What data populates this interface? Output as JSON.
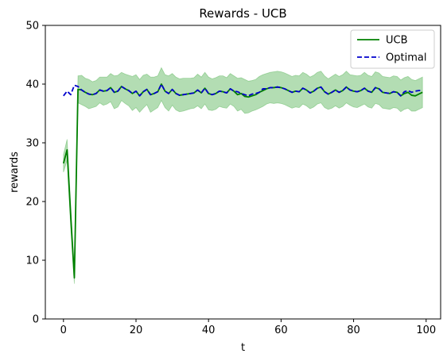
{
  "chart_data": {
    "type": "line",
    "title": "Rewards - UCB",
    "xlabel": "t",
    "ylabel": "rewards",
    "xlim": [
      -5,
      104
    ],
    "ylim": [
      0,
      50
    ],
    "xticks": [
      0,
      20,
      40,
      60,
      80,
      100
    ],
    "yticks": [
      0,
      10,
      20,
      30,
      40,
      50
    ],
    "grid": false,
    "legend_position": "top-right",
    "series": [
      {
        "name": "UCB",
        "style": "solid",
        "color": "#008000",
        "band_color": "#2ca02c",
        "x": [
          0,
          1,
          2,
          3,
          4,
          5,
          6,
          7,
          8,
          9,
          10,
          11,
          12,
          13,
          14,
          15,
          16,
          17,
          18,
          19,
          20,
          21,
          22,
          23,
          24,
          25,
          26,
          27,
          28,
          29,
          30,
          31,
          32,
          33,
          34,
          35,
          36,
          37,
          38,
          39,
          40,
          41,
          42,
          43,
          44,
          45,
          46,
          47,
          48,
          49,
          50,
          51,
          52,
          53,
          54,
          55,
          56,
          57,
          58,
          59,
          60,
          61,
          62,
          63,
          64,
          65,
          66,
          67,
          68,
          69,
          70,
          71,
          72,
          73,
          74,
          75,
          76,
          77,
          78,
          79,
          80,
          81,
          82,
          83,
          84,
          85,
          86,
          87,
          88,
          89,
          90,
          91,
          92,
          93,
          94,
          95,
          96,
          97,
          98,
          99
        ],
        "values": [
          26.5,
          28.8,
          17.5,
          7.0,
          39.1,
          39.0,
          38.6,
          38.3,
          38.2,
          38.4,
          39.0,
          38.8,
          38.9,
          39.4,
          38.6,
          38.8,
          39.6,
          39.2,
          38.9,
          38.4,
          38.8,
          38.0,
          38.7,
          39.1,
          38.2,
          38.4,
          38.7,
          40.0,
          38.8,
          38.4,
          39.1,
          38.4,
          38.1,
          38.2,
          38.3,
          38.4,
          38.5,
          39.0,
          38.5,
          39.3,
          38.4,
          38.2,
          38.4,
          38.8,
          38.7,
          38.5,
          39.2,
          38.8,
          38.2,
          38.4,
          37.9,
          37.8,
          38.0,
          38.2,
          38.6,
          38.9,
          39.2,
          39.4,
          39.4,
          39.5,
          39.4,
          39.2,
          38.9,
          38.6,
          38.8,
          38.7,
          39.3,
          39.0,
          38.5,
          38.8,
          39.3,
          39.5,
          38.7,
          38.3,
          38.6,
          39.0,
          38.6,
          38.9,
          39.5,
          39.0,
          38.8,
          38.7,
          38.9,
          39.3,
          38.8,
          38.6,
          39.4,
          39.2,
          38.6,
          38.5,
          38.4,
          38.7,
          38.6,
          38.0,
          38.4,
          38.6,
          38.1,
          38.0,
          38.3,
          38.6
        ],
        "lower": [
          25.0,
          27.0,
          15.5,
          6.0,
          36.8,
          36.5,
          36.2,
          35.8,
          36.0,
          36.2,
          36.8,
          36.4,
          36.6,
          37.0,
          35.8,
          36.1,
          37.2,
          36.7,
          36.3,
          35.5,
          36.0,
          35.2,
          35.9,
          36.5,
          35.2,
          35.6,
          36.0,
          37.2,
          36.0,
          35.4,
          36.4,
          35.6,
          35.3,
          35.4,
          35.6,
          35.8,
          35.9,
          36.3,
          35.8,
          36.6,
          35.6,
          35.5,
          35.7,
          36.2,
          36.0,
          35.9,
          36.6,
          36.2,
          35.4,
          35.7,
          35.0,
          35.1,
          35.4,
          35.6,
          35.9,
          36.2,
          36.6,
          36.8,
          36.7,
          36.8,
          36.7,
          36.5,
          36.2,
          35.9,
          36.1,
          36.0,
          36.6,
          36.3,
          35.8,
          36.1,
          36.6,
          36.8,
          36.0,
          35.7,
          35.9,
          36.3,
          35.9,
          36.2,
          36.8,
          36.4,
          36.1,
          36.0,
          36.3,
          36.6,
          36.1,
          35.9,
          36.7,
          36.5,
          35.9,
          35.8,
          35.7,
          36.0,
          35.9,
          35.3,
          35.7,
          35.9,
          35.4,
          35.4,
          35.7,
          36.0
        ],
        "upper": [
          28.0,
          30.6,
          19.5,
          8.0,
          41.4,
          41.5,
          41.0,
          40.8,
          40.4,
          40.6,
          41.2,
          41.2,
          41.2,
          41.8,
          41.4,
          41.5,
          42.0,
          41.7,
          41.5,
          41.3,
          41.6,
          40.8,
          41.5,
          41.7,
          41.2,
          41.2,
          41.4,
          42.8,
          41.6,
          41.4,
          41.8,
          41.2,
          40.9,
          41.0,
          41.0,
          41.0,
          41.1,
          41.7,
          41.2,
          42.0,
          41.2,
          40.9,
          41.1,
          41.4,
          41.4,
          41.1,
          41.8,
          41.4,
          41.0,
          41.1,
          40.8,
          40.5,
          40.6,
          40.8,
          41.3,
          41.6,
          41.8,
          42.0,
          42.1,
          42.2,
          42.1,
          41.9,
          41.6,
          41.3,
          41.5,
          41.4,
          42.0,
          41.7,
          41.2,
          41.5,
          42.0,
          42.2,
          41.4,
          40.9,
          41.3,
          41.7,
          41.3,
          41.6,
          42.2,
          41.6,
          41.5,
          41.4,
          41.5,
          42.0,
          41.5,
          41.3,
          42.1,
          41.9,
          41.3,
          41.2,
          41.1,
          41.4,
          41.3,
          40.7,
          41.1,
          41.3,
          40.8,
          40.6,
          40.9,
          41.2
        ]
      },
      {
        "name": "Optimal",
        "style": "dashed",
        "color": "#0000cc",
        "x": [
          0,
          1,
          2,
          3,
          4,
          5,
          6,
          7,
          8,
          9,
          10,
          11,
          12,
          13,
          14,
          15,
          16,
          17,
          18,
          19,
          20,
          21,
          22,
          23,
          24,
          25,
          26,
          27,
          28,
          29,
          30,
          31,
          32,
          33,
          34,
          35,
          36,
          37,
          38,
          39,
          40,
          41,
          42,
          43,
          44,
          45,
          46,
          47,
          48,
          49,
          50,
          51,
          52,
          53,
          54,
          55,
          56,
          57,
          58,
          59,
          60,
          61,
          62,
          63,
          64,
          65,
          66,
          67,
          68,
          69,
          70,
          71,
          72,
          73,
          74,
          75,
          76,
          77,
          78,
          79,
          80,
          81,
          82,
          83,
          84,
          85,
          86,
          87,
          88,
          89,
          90,
          91,
          92,
          93,
          94,
          95,
          96,
          97,
          98,
          99
        ],
        "values": [
          38.0,
          38.8,
          38.2,
          39.8,
          39.6,
          39.0,
          38.6,
          38.3,
          38.2,
          38.4,
          39.0,
          38.8,
          38.9,
          39.4,
          38.6,
          38.8,
          39.6,
          39.2,
          38.9,
          38.4,
          38.8,
          38.0,
          38.7,
          39.1,
          38.2,
          38.4,
          38.7,
          40.0,
          38.8,
          38.4,
          39.1,
          38.4,
          38.1,
          38.2,
          38.3,
          38.4,
          38.5,
          39.0,
          38.5,
          39.3,
          38.4,
          38.2,
          38.4,
          38.8,
          38.7,
          38.5,
          39.2,
          38.8,
          38.7,
          38.4,
          38.2,
          38.0,
          38.3,
          38.4,
          38.6,
          39.2,
          39.2,
          39.4,
          39.4,
          39.5,
          39.4,
          39.2,
          38.9,
          38.6,
          38.8,
          38.7,
          39.3,
          39.0,
          38.5,
          38.8,
          39.3,
          39.5,
          38.7,
          38.3,
          38.6,
          39.0,
          38.6,
          38.9,
          39.5,
          39.0,
          38.8,
          38.7,
          38.9,
          39.3,
          38.8,
          38.6,
          39.4,
          39.2,
          38.6,
          38.5,
          38.4,
          38.7,
          38.6,
          38.0,
          38.7,
          38.9,
          38.6,
          38.8,
          38.9,
          38.9
        ]
      }
    ]
  }
}
